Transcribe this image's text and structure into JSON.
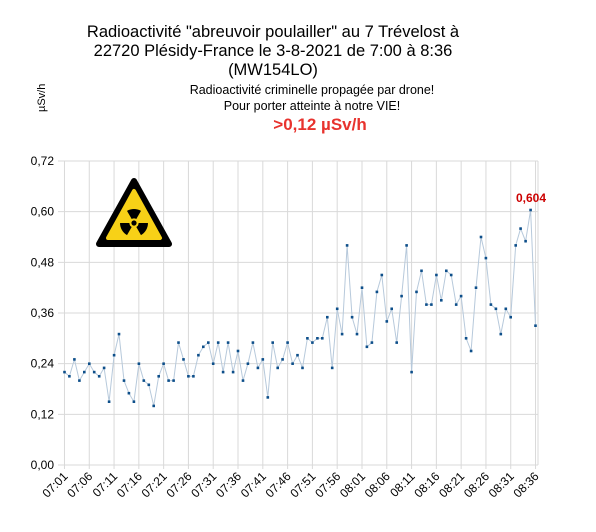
{
  "title_lines": [
    "Radioactivité \"abreuvoir poulailler\" au 7 Trévelost à",
    "22720 Plésidy-France le 3-8-2021 de 7:00 à 8:36",
    "(MW154LO)"
  ],
  "subtitle_lines": [
    "Radioactivité criminelle propagée par drone!",
    "Pour porter atteinte à notre VIE!"
  ],
  "alert_text": ">0,12 µSv/h",
  "peak_label": "0,604",
  "colors": {
    "alert": "#e8332e",
    "peak": "#cc0000",
    "series": "#0e4f8a",
    "line": "#b7c9db",
    "grid": "#d9d9d9"
  },
  "icon": "radiation-warning-icon",
  "chart_data": {
    "type": "line",
    "ylabel": "µSv/h",
    "ylim": [
      0,
      0.72
    ],
    "y_ticks": [
      "0,00",
      "0,12",
      "0,24",
      "0,36",
      "0,48",
      "0,60",
      "0,72"
    ],
    "x_tick_labels": [
      "07:01",
      "07:06",
      "07:11",
      "07:16",
      "07:21",
      "07:26",
      "07:31",
      "07:36",
      "07:41",
      "07:46",
      "07:51",
      "07:56",
      "08:01",
      "08:06",
      "08:11",
      "08:16",
      "08:21",
      "08:26",
      "08:31",
      "08:36"
    ],
    "grid": true,
    "x_start": "07:01",
    "x_end": "08:36",
    "values": [
      0.22,
      0.21,
      0.25,
      0.2,
      0.22,
      0.24,
      0.22,
      0.21,
      0.23,
      0.15,
      0.26,
      0.31,
      0.2,
      0.17,
      0.15,
      0.24,
      0.2,
      0.19,
      0.14,
      0.21,
      0.24,
      0.2,
      0.2,
      0.29,
      0.25,
      0.21,
      0.21,
      0.26,
      0.28,
      0.29,
      0.24,
      0.29,
      0.22,
      0.29,
      0.22,
      0.27,
      0.2,
      0.24,
      0.29,
      0.23,
      0.25,
      0.16,
      0.29,
      0.23,
      0.25,
      0.29,
      0.24,
      0.26,
      0.23,
      0.3,
      0.29,
      0.3,
      0.3,
      0.35,
      0.23,
      0.37,
      0.31,
      0.52,
      0.35,
      0.31,
      0.42,
      0.28,
      0.29,
      0.41,
      0.45,
      0.34,
      0.37,
      0.29,
      0.4,
      0.52,
      0.22,
      0.41,
      0.46,
      0.38,
      0.38,
      0.45,
      0.39,
      0.46,
      0.45,
      0.38,
      0.4,
      0.3,
      0.27,
      0.42,
      0.54,
      0.49,
      0.38,
      0.37,
      0.31,
      0.37,
      0.35,
      0.52,
      0.56,
      0.53,
      0.604,
      0.33
    ]
  }
}
